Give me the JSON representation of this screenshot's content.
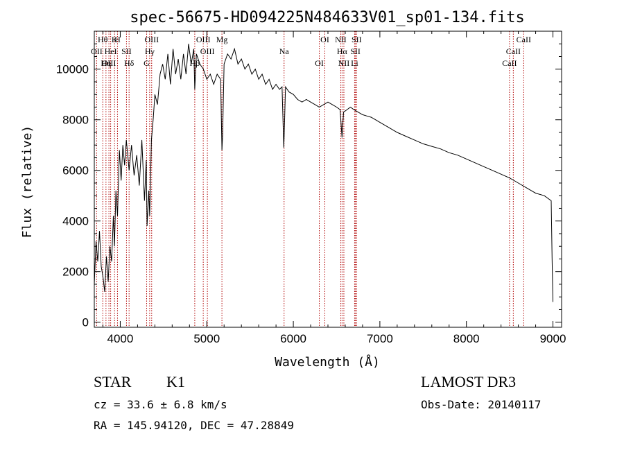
{
  "chart_data": {
    "type": "line",
    "title": "spec-56675-HD094225N484633V01_sp01-134.fits",
    "xlabel": "Wavelength (Å)",
    "ylabel": "Flux (relative)",
    "xlim": [
      3700,
      9100
    ],
    "ylim": [
      -200,
      11500
    ],
    "xticks": [
      4000,
      5000,
      6000,
      7000,
      8000,
      9000
    ],
    "yticks": [
      0,
      2000,
      4000,
      6000,
      8000,
      10000
    ],
    "series": [
      {
        "name": "spectrum",
        "x": [
          3700,
          3720,
          3740,
          3760,
          3780,
          3800,
          3820,
          3840,
          3860,
          3880,
          3900,
          3920,
          3933,
          3950,
          3968,
          3990,
          4010,
          4030,
          4050,
          4070,
          4102,
          4130,
          4160,
          4190,
          4220,
          4250,
          4280,
          4300,
          4310,
          4330,
          4340,
          4360,
          4380,
          4400,
          4430,
          4460,
          4490,
          4520,
          4550,
          4580,
          4610,
          4640,
          4670,
          4700,
          4730,
          4760,
          4790,
          4820,
          4850,
          4861,
          4880,
          4920,
          4960,
          5000,
          5040,
          5080,
          5120,
          5160,
          5175,
          5183,
          5200,
          5240,
          5280,
          5320,
          5360,
          5400,
          5440,
          5480,
          5520,
          5560,
          5600,
          5640,
          5680,
          5720,
          5760,
          5800,
          5840,
          5870,
          5890,
          5896,
          5910,
          5950,
          6000,
          6050,
          6100,
          6150,
          6200,
          6250,
          6300,
          6350,
          6400,
          6450,
          6500,
          6540,
          6563,
          6580,
          6620,
          6660,
          6700,
          6750,
          6800,
          6850,
          6900,
          6950,
          7000,
          7100,
          7200,
          7300,
          7400,
          7500,
          7600,
          7700,
          7800,
          7900,
          8000,
          8100,
          8200,
          8300,
          8400,
          8500,
          8600,
          8700,
          8800,
          8900,
          8980,
          8990,
          9000
        ],
        "y": [
          1500,
          3200,
          2400,
          3600,
          2200,
          1800,
          1200,
          2600,
          1600,
          3000,
          2400,
          4200,
          3000,
          5200,
          4200,
          6800,
          5600,
          7000,
          6200,
          7200,
          6000,
          7000,
          5800,
          6600,
          5400,
          7200,
          4800,
          6400,
          3800,
          5200,
          4200,
          7200,
          8000,
          9000,
          8600,
          9800,
          10200,
          9600,
          10600,
          9400,
          10800,
          9800,
          10400,
          9600,
          10600,
          9800,
          11000,
          10200,
          10800,
          9200,
          10600,
          10200,
          10000,
          9600,
          9800,
          9400,
          9800,
          9600,
          6800,
          7400,
          10200,
          10600,
          10400,
          10800,
          10200,
          10400,
          10000,
          10200,
          9800,
          10000,
          9600,
          9800,
          9400,
          9600,
          9200,
          9400,
          9200,
          9300,
          6900,
          7600,
          9300,
          9100,
          9000,
          8800,
          8700,
          8800,
          8700,
          8600,
          8500,
          8600,
          8700,
          8600,
          8500,
          8400,
          7300,
          8300,
          8400,
          8500,
          8400,
          8300,
          8200,
          8150,
          8100,
          8000,
          7900,
          7700,
          7500,
          7350,
          7200,
          7050,
          6950,
          6850,
          6700,
          6600,
          6450,
          6300,
          6150,
          6000,
          5850,
          5700,
          5500,
          5300,
          5100,
          5000,
          4800,
          2500,
          800
        ]
      }
    ],
    "lines": [
      {
        "label": "Hθ",
        "x": 3798
      },
      {
        "label": "OII",
        "x": 3727
      },
      {
        "label": "OIII",
        "x": 3869
      },
      {
        "label": "K",
        "x": 3934
      },
      {
        "label": "HeI",
        "x": 3889
      },
      {
        "label": "Hη",
        "x": 3835
      },
      {
        "label": "H",
        "x": 3968
      },
      {
        "label": "SII",
        "x": 4072
      },
      {
        "label": "Hδ",
        "x": 4102
      },
      {
        "label": "OIII",
        "x": 4363
      },
      {
        "label": "Hγ",
        "x": 4340
      },
      {
        "label": "G",
        "x": 4305
      },
      {
        "label": "OIII",
        "x": 4959
      },
      {
        "label": "OIII",
        "x": 5007
      },
      {
        "label": "Hβ",
        "x": 4861
      },
      {
        "label": "Mg",
        "x": 5175
      },
      {
        "label": "Na",
        "x": 5893
      },
      {
        "label": "OI",
        "x": 6300
      },
      {
        "label": "OI",
        "x": 6364
      },
      {
        "label": "Hα",
        "x": 6563
      },
      {
        "label": "NII",
        "x": 6584
      },
      {
        "label": "NII",
        "x": 6548
      },
      {
        "label": "SII",
        "x": 6717
      },
      {
        "label": "Li",
        "x": 6708
      },
      {
        "label": "SII",
        "x": 6731
      },
      {
        "label": "CaII",
        "x": 8542
      },
      {
        "label": "CaII",
        "x": 8498
      },
      {
        "label": "CaII",
        "x": 8662
      }
    ]
  },
  "info": {
    "obj_class": "STAR",
    "subclass": "K1",
    "survey": "LAMOST DR3",
    "cz": "cz = 33.6 ± 6.8 km/s",
    "obs_date": "Obs-Date: 20140117",
    "radec": "RA = 145.94120, DEC =  47.28849"
  }
}
